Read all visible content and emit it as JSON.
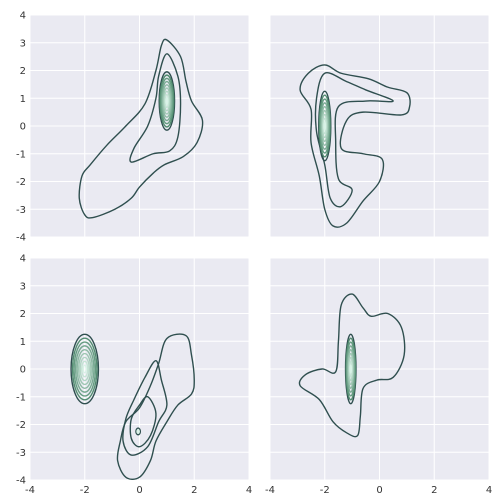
{
  "chart_data": [
    {
      "type": "kde-contour",
      "panel": "top-left",
      "xlim": [
        -4,
        4
      ],
      "ylim": [
        -4,
        4
      ],
      "xticks": [
        "-4",
        "-2",
        "0",
        "2",
        "4"
      ],
      "yticks": [
        "-4",
        "-3",
        "-2",
        "-1",
        "0",
        "1",
        "2",
        "3",
        "4"
      ],
      "show_xtick_labels": false,
      "show_ytick_labels": true,
      "grid": true,
      "peaks": [
        {
          "x": 1.0,
          "y": 0.9,
          "sx": 0.28,
          "sy": 1.05,
          "levels": 9
        }
      ],
      "outer_contours": [
        [
          [
            1.0,
            3.1
          ],
          [
            1.5,
            2.5
          ],
          [
            1.7,
            1.6
          ],
          [
            1.9,
            0.9
          ],
          [
            2.3,
            0.2
          ],
          [
            2.1,
            -0.6
          ],
          [
            1.6,
            -1.1
          ],
          [
            0.9,
            -1.4
          ],
          [
            0.5,
            -1.7
          ],
          [
            0.0,
            -2.2
          ],
          [
            -0.3,
            -2.6
          ],
          [
            -0.9,
            -3.0
          ],
          [
            -1.7,
            -3.3
          ],
          [
            -2.0,
            -3.2
          ],
          [
            -2.2,
            -2.6
          ],
          [
            -2.1,
            -1.8
          ],
          [
            -1.8,
            -1.4
          ],
          [
            -1.2,
            -0.7
          ],
          [
            -0.5,
            0.0
          ],
          [
            0.2,
            0.8
          ],
          [
            0.6,
            2.0
          ],
          [
            0.8,
            2.9
          ]
        ],
        [
          [
            1.0,
            2.6
          ],
          [
            1.4,
            1.8
          ],
          [
            1.5,
            0.8
          ],
          [
            1.4,
            -0.4
          ],
          [
            1.1,
            -0.9
          ],
          [
            0.5,
            -1.0
          ],
          [
            -0.3,
            -1.3
          ],
          [
            -0.2,
            -0.8
          ],
          [
            0.3,
            0.0
          ],
          [
            0.6,
            1.0
          ],
          [
            0.7,
            1.8
          ]
        ]
      ]
    },
    {
      "type": "kde-contour",
      "panel": "top-right",
      "xlim": [
        -4,
        4
      ],
      "ylim": [
        -4,
        4
      ],
      "xticks": [
        "-4",
        "-2",
        "0",
        "2",
        "4"
      ],
      "yticks": [
        "-4",
        "-3",
        "-2",
        "-1",
        "0",
        "1",
        "2",
        "3",
        "4"
      ],
      "show_xtick_labels": false,
      "show_ytick_labels": false,
      "grid": true,
      "peaks": [
        {
          "x": -2.0,
          "y": 0.0,
          "sx": 0.22,
          "sy": 1.25,
          "levels": 9
        }
      ],
      "outer_contours": [
        [
          [
            -2.0,
            2.2
          ],
          [
            -1.4,
            1.9
          ],
          [
            -0.4,
            1.7
          ],
          [
            0.3,
            1.4
          ],
          [
            1.0,
            1.2
          ],
          [
            1.1,
            0.7
          ],
          [
            0.8,
            0.4
          ],
          [
            -0.6,
            0.5
          ],
          [
            -1.2,
            0.2
          ],
          [
            -1.4,
            -0.8
          ],
          [
            -0.6,
            -1.0
          ],
          [
            0.1,
            -1.2
          ],
          [
            0.0,
            -2.0
          ],
          [
            -0.6,
            -2.7
          ],
          [
            -1.2,
            -3.5
          ],
          [
            -1.7,
            -3.6
          ],
          [
            -2.0,
            -3.0
          ],
          [
            -2.2,
            -1.8
          ],
          [
            -2.5,
            -0.6
          ],
          [
            -2.5,
            0.6
          ],
          [
            -2.9,
            1.3
          ],
          [
            -2.6,
            1.9
          ]
        ],
        [
          [
            -2.0,
            1.9
          ],
          [
            -1.2,
            1.6
          ],
          [
            -0.5,
            1.3
          ],
          [
            0.5,
            0.9
          ],
          [
            -0.5,
            0.9
          ],
          [
            -1.5,
            0.7
          ],
          [
            -1.6,
            -0.6
          ],
          [
            -1.5,
            -1.9
          ],
          [
            -1.0,
            -2.3
          ],
          [
            -1.4,
            -2.9
          ],
          [
            -1.8,
            -2.6
          ],
          [
            -2.0,
            -1.4
          ],
          [
            -2.3,
            -0.2
          ],
          [
            -2.3,
            1.0
          ]
        ]
      ]
    },
    {
      "type": "kde-contour",
      "panel": "bottom-left",
      "xlim": [
        -4,
        4
      ],
      "ylim": [
        -4,
        4
      ],
      "xticks": [
        "-4",
        "-2",
        "0",
        "2",
        "4"
      ],
      "yticks": [
        "-4",
        "-3",
        "-2",
        "-1",
        "0",
        "1",
        "2",
        "3",
        "4"
      ],
      "show_xtick_labels": true,
      "show_ytick_labels": true,
      "grid": true,
      "peaks": [
        {
          "x": -2.0,
          "y": 0.0,
          "sx": 0.5,
          "sy": 1.25,
          "levels": 9
        },
        {
          "x": -0.05,
          "y": -2.25,
          "sx": 0.08,
          "sy": 0.12,
          "levels": 2
        }
      ],
      "outer_contours": [
        [
          [
            0.0,
            -1.4
          ],
          [
            0.4,
            -0.6
          ],
          [
            0.7,
            0.2
          ],
          [
            1.0,
            1.1
          ],
          [
            1.7,
            1.2
          ],
          [
            1.9,
            0.5
          ],
          [
            2.0,
            -0.4
          ],
          [
            1.9,
            -0.9
          ],
          [
            1.4,
            -1.3
          ],
          [
            1.0,
            -1.9
          ],
          [
            0.6,
            -2.6
          ],
          [
            0.4,
            -3.3
          ],
          [
            0.0,
            -3.9
          ],
          [
            -0.5,
            -3.9
          ],
          [
            -0.8,
            -3.3
          ],
          [
            -0.7,
            -2.6
          ],
          [
            -0.5,
            -1.9
          ]
        ],
        [
          [
            0.6,
            0.3
          ],
          [
            0.8,
            -0.4
          ],
          [
            1.0,
            -1.3
          ],
          [
            0.7,
            -1.9
          ],
          [
            0.3,
            -2.8
          ],
          [
            -0.3,
            -3.1
          ],
          [
            -0.6,
            -2.6
          ],
          [
            -0.5,
            -1.8
          ],
          [
            -0.2,
            -1.1
          ],
          [
            0.2,
            -0.3
          ]
        ],
        [
          [
            0.3,
            -1.0
          ],
          [
            0.6,
            -1.6
          ],
          [
            0.4,
            -2.4
          ],
          [
            0.0,
            -2.8
          ],
          [
            -0.3,
            -2.5
          ],
          [
            -0.3,
            -1.8
          ],
          [
            0.0,
            -1.3
          ]
        ]
      ]
    },
    {
      "type": "kde-contour",
      "panel": "bottom-right",
      "xlim": [
        -4,
        4
      ],
      "ylim": [
        -4,
        4
      ],
      "xticks": [
        "-4",
        "-2",
        "0",
        "2",
        "4"
      ],
      "yticks": [
        "-4",
        "-3",
        "-2",
        "-1",
        "0",
        "1",
        "2",
        "3",
        "4"
      ],
      "show_xtick_labels": true,
      "show_ytick_labels": false,
      "grid": true,
      "peaks": [
        {
          "x": -1.05,
          "y": 0.0,
          "sx": 0.19,
          "sy": 1.25,
          "levels": 9
        }
      ],
      "outer_contours": [
        [
          [
            -1.0,
            2.7
          ],
          [
            -0.6,
            2.2
          ],
          [
            -0.3,
            1.9
          ],
          [
            0.3,
            2.0
          ],
          [
            0.8,
            1.5
          ],
          [
            0.9,
            0.5
          ],
          [
            0.5,
            -0.3
          ],
          [
            -0.1,
            -0.4
          ],
          [
            -0.6,
            -0.7
          ],
          [
            -0.7,
            -1.7
          ],
          [
            -0.8,
            -2.4
          ],
          [
            -1.2,
            -2.3
          ],
          [
            -1.7,
            -1.9
          ],
          [
            -2.2,
            -1.1
          ],
          [
            -2.9,
            -0.6
          ],
          [
            -2.7,
            -0.2
          ],
          [
            -2.1,
            0.0
          ],
          [
            -1.6,
            -0.1
          ],
          [
            -1.5,
            1.0
          ],
          [
            -1.4,
            2.3
          ]
        ]
      ]
    }
  ],
  "colors": {
    "background": "#ffffff",
    "axes_face": "#eaeaf2",
    "grid": "#ffffff",
    "contour_dark": "#2f4f4f",
    "contour_light": "#d8f2e6"
  }
}
